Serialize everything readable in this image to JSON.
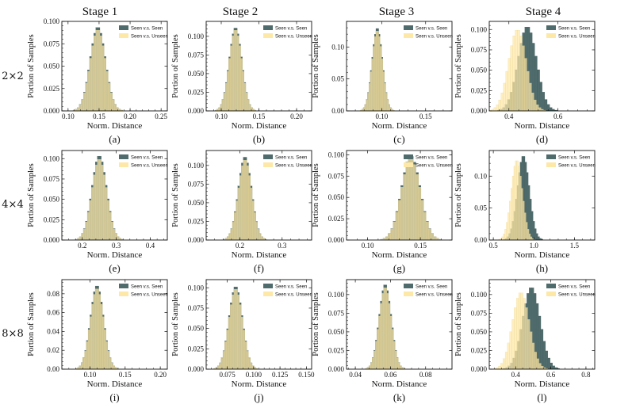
{
  "figure": {
    "stage_titles": [
      "Stage 1",
      "Stage 2",
      "Stage 3",
      "Stage 4"
    ],
    "row_labels": [
      "2×2",
      "4×4",
      "8×8"
    ]
  },
  "colors": {
    "seen_seen": "#4f6b6b",
    "seen_unseen": "#fde8a8",
    "overlap": "#a9a873"
  },
  "chart_data": [
    {
      "type": "histogram",
      "caption": "(a)",
      "xlabel": "Norm. Distance",
      "ylabel": "Portion of Samples",
      "xlim": [
        0.09,
        0.26
      ],
      "ylim": [
        0,
        0.1
      ],
      "xticks": [
        0.1,
        0.15,
        0.2,
        0.25
      ],
      "xtick_labels": [
        "0.10",
        "0.15",
        "0.20",
        "0.25"
      ],
      "yticks": [
        0,
        0.025,
        0.05,
        0.075,
        0.1
      ],
      "ytick_labels": [
        "0.000",
        "0.025",
        "0.050",
        "0.075",
        "0.100"
      ],
      "legend": [
        "Seen v.s. Seen",
        "Seen v.s. Unseen"
      ],
      "series": [
        {
          "name": "Seen v.s. Seen",
          "mean": 0.148,
          "sd": 0.0125,
          "peak": 0.094
        },
        {
          "name": "Seen v.s. Unseen",
          "mean": 0.148,
          "sd": 0.0125,
          "peak": 0.091
        }
      ]
    },
    {
      "type": "histogram",
      "caption": "(b)",
      "xlabel": "Norm. Distance",
      "ylabel": "Portion of Samples",
      "xlim": [
        0.08,
        0.22
      ],
      "ylim": [
        0,
        0.12
      ],
      "xticks": [
        0.1,
        0.15,
        0.2
      ],
      "xtick_labels": [
        "0.10",
        "0.15",
        "0.20"
      ],
      "yticks": [
        0,
        0.025,
        0.05,
        0.075,
        0.1
      ],
      "ytick_labels": [
        "0.000",
        "0.025",
        "0.050",
        "0.075",
        "0.100"
      ],
      "legend": [
        "Seen v.s. Seen",
        "Seen v.s. Unseen"
      ],
      "series": [
        {
          "name": "Seen v.s. Seen",
          "mean": 0.119,
          "sd": 0.0085,
          "peak": 0.112
        },
        {
          "name": "Seen v.s. Unseen",
          "mean": 0.119,
          "sd": 0.0085,
          "peak": 0.109
        }
      ]
    },
    {
      "type": "histogram",
      "caption": "(c)",
      "xlabel": "Norm. Distance",
      "ylabel": "Portion of Samples",
      "xlim": [
        0.06,
        0.18
      ],
      "ylim": [
        0,
        0.14
      ],
      "xticks": [
        0.1,
        0.15
      ],
      "xtick_labels": [
        "0.10",
        "0.15"
      ],
      "yticks": [
        0,
        0.05,
        0.1
      ],
      "ytick_labels": [
        "0.00",
        "0.05",
        "0.10"
      ],
      "legend": [
        "Seen v.s. Seen",
        "Seen v.s. Unseen"
      ],
      "series": [
        {
          "name": "Seen v.s. Seen",
          "mean": 0.095,
          "sd": 0.006,
          "peak": 0.13
        },
        {
          "name": "Seen v.s. Unseen",
          "mean": 0.095,
          "sd": 0.006,
          "peak": 0.126
        }
      ]
    },
    {
      "type": "histogram",
      "caption": "(d)",
      "xlabel": "Norm. Distance",
      "ylabel": "Portion of Samples",
      "xlim": [
        0.32,
        0.75
      ],
      "ylim": [
        0,
        0.11
      ],
      "xticks": [
        0.4,
        0.6
      ],
      "xtick_labels": [
        "0.4",
        "0.6"
      ],
      "yticks": [
        0,
        0.025,
        0.05,
        0.075,
        0.1
      ],
      "ytick_labels": [
        "0.000",
        "0.025",
        "0.050",
        "0.075",
        "0.100"
      ],
      "legend": [
        "Seen v.s. Seen",
        "Seen v.s. Unseen"
      ],
      "series": [
        {
          "name": "Seen v.s. Seen",
          "mean": 0.475,
          "sd": 0.038,
          "peak": 0.104
        },
        {
          "name": "Seen v.s. Unseen",
          "mean": 0.435,
          "sd": 0.036,
          "peak": 0.1
        }
      ]
    },
    {
      "type": "histogram",
      "caption": "(e)",
      "xlabel": "Norm. Distance",
      "ylabel": "Portion of Samples",
      "xlim": [
        0.14,
        0.45
      ],
      "ylim": [
        0,
        0.11
      ],
      "xticks": [
        0.2,
        0.3,
        0.4
      ],
      "xtick_labels": [
        "0.2",
        "0.3",
        "0.4"
      ],
      "yticks": [
        0,
        0.025,
        0.05,
        0.075,
        0.1
      ],
      "ytick_labels": [
        "0.000",
        "0.025",
        "0.050",
        "0.075",
        "0.100"
      ],
      "legend": [
        "Seen v.s. Seen",
        "Seen v.s. Unseen"
      ],
      "series": [
        {
          "name": "Seen v.s. Seen",
          "mean": 0.25,
          "sd": 0.022,
          "peak": 0.104
        },
        {
          "name": "Seen v.s. Unseen",
          "mean": 0.25,
          "sd": 0.022,
          "peak": 0.1
        }
      ]
    },
    {
      "type": "histogram",
      "caption": "(f)",
      "xlabel": "Norm. Distance",
      "ylabel": "Portion of Samples",
      "xlim": [
        0.12,
        0.37
      ],
      "ylim": [
        0,
        0.12
      ],
      "xticks": [
        0.2,
        0.3
      ],
      "xtick_labels": [
        "0.2",
        "0.3"
      ],
      "yticks": [
        0,
        0.025,
        0.05,
        0.075,
        0.1
      ],
      "ytick_labels": [
        "0.000",
        "0.025",
        "0.050",
        "0.075",
        "0.100"
      ],
      "legend": [
        "Seen v.s. Seen",
        "Seen v.s. Unseen"
      ],
      "series": [
        {
          "name": "Seen v.s. Seen",
          "mean": 0.212,
          "sd": 0.016,
          "peak": 0.112
        },
        {
          "name": "Seen v.s. Unseen",
          "mean": 0.212,
          "sd": 0.016,
          "peak": 0.108
        }
      ]
    },
    {
      "type": "histogram",
      "caption": "(g)",
      "xlabel": "Norm. Distance",
      "ylabel": "Portion of Samples",
      "xlim": [
        0.08,
        0.18
      ],
      "ylim": [
        0,
        0.105
      ],
      "xticks": [
        0.1,
        0.15
      ],
      "xtick_labels": [
        "0.10",
        "0.15"
      ],
      "yticks": [
        0,
        0.025,
        0.05,
        0.075,
        0.1
      ],
      "ytick_labels": [
        "0.000",
        "0.025",
        "0.050",
        "0.075",
        "0.100"
      ],
      "legend": [
        "Seen v.s. Seen",
        "Seen v.s. Unseen"
      ],
      "series": [
        {
          "name": "Seen v.s. Seen",
          "mean": 0.141,
          "sd": 0.009,
          "peak": 0.099
        },
        {
          "name": "Seen v.s. Unseen",
          "mean": 0.141,
          "sd": 0.009,
          "peak": 0.096
        }
      ]
    },
    {
      "type": "histogram",
      "caption": "(h)",
      "xlabel": "Norm. Distance",
      "ylabel": "Portion of Samples",
      "xlim": [
        0.45,
        1.75
      ],
      "ylim": [
        0,
        0.14
      ],
      "xticks": [
        0.5,
        1.0,
        1.5
      ],
      "xtick_labels": [
        "0.5",
        "1.0",
        "1.5"
      ],
      "yticks": [
        0,
        0.05,
        0.1
      ],
      "ytick_labels": [
        "0.00",
        "0.05",
        "0.10"
      ],
      "legend": [
        "Seen v.s. Seen",
        "Seen v.s. Unseen"
      ],
      "series": [
        {
          "name": "Seen v.s. Seen",
          "mean": 0.87,
          "sd": 0.075,
          "peak": 0.132
        },
        {
          "name": "Seen v.s. Unseen",
          "mean": 0.79,
          "sd": 0.07,
          "peak": 0.125
        }
      ]
    },
    {
      "type": "histogram",
      "caption": "(i)",
      "xlabel": "Norm. Distance",
      "ylabel": "Portion of Samples",
      "xlim": [
        0.06,
        0.21
      ],
      "ylim": [
        0,
        0.095
      ],
      "xticks": [
        0.1,
        0.15,
        0.2
      ],
      "xtick_labels": [
        "0.10",
        "0.15",
        "0.20"
      ],
      "yticks": [
        0,
        0.02,
        0.04,
        0.06,
        0.08
      ],
      "ytick_labels": [
        "0.00",
        "0.02",
        "0.04",
        "0.06",
        "0.08"
      ],
      "legend": [
        "Seen v.s. Seen",
        "Seen v.s. Unseen"
      ],
      "series": [
        {
          "name": "Seen v.s. Seen",
          "mean": 0.11,
          "sd": 0.0095,
          "peak": 0.089
        },
        {
          "name": "Seen v.s. Unseen",
          "mean": 0.11,
          "sd": 0.0095,
          "peak": 0.086
        }
      ]
    },
    {
      "type": "histogram",
      "caption": "(j)",
      "xlabel": "Norm. Distance",
      "ylabel": "Portion of Samples",
      "xlim": [
        0.055,
        0.155
      ],
      "ylim": [
        0,
        0.11
      ],
      "xticks": [
        0.075,
        0.1,
        0.125,
        0.15
      ],
      "xtick_labels": [
        "0.075",
        "0.100",
        "0.125",
        "0.150"
      ],
      "yticks": [
        0,
        0.025,
        0.05,
        0.075,
        0.1
      ],
      "ytick_labels": [
        "0.000",
        "0.025",
        "0.050",
        "0.075",
        "0.100"
      ],
      "legend": [
        "Seen v.s. Seen",
        "Seen v.s. Unseen"
      ],
      "series": [
        {
          "name": "Seen v.s. Seen",
          "mean": 0.083,
          "sd": 0.0065,
          "peak": 0.102
        },
        {
          "name": "Seen v.s. Unseen",
          "mean": 0.083,
          "sd": 0.0065,
          "peak": 0.099
        }
      ]
    },
    {
      "type": "histogram",
      "caption": "(k)",
      "xlabel": "Norm. Distance",
      "ylabel": "Portion of Samples",
      "xlim": [
        0.035,
        0.095
      ],
      "ylim": [
        0,
        0.12
      ],
      "xticks": [
        0.04,
        0.06,
        0.08
      ],
      "xtick_labels": [
        "0.04",
        "0.06",
        "0.08"
      ],
      "yticks": [
        0,
        0.025,
        0.05,
        0.075,
        0.1
      ],
      "ytick_labels": [
        "0.000",
        "0.025",
        "0.050",
        "0.075",
        "0.100"
      ],
      "legend": [
        "Seen v.s. Seen",
        "Seen v.s. Unseen"
      ],
      "series": [
        {
          "name": "Seen v.s. Seen",
          "mean": 0.057,
          "sd": 0.0035,
          "peak": 0.114
        },
        {
          "name": "Seen v.s. Unseen",
          "mean": 0.057,
          "sd": 0.0035,
          "peak": 0.11
        }
      ]
    },
    {
      "type": "histogram",
      "caption": "(l)",
      "xlabel": "Norm. Distance",
      "ylabel": "Portion of Samples",
      "xlim": [
        0.25,
        0.85
      ],
      "ylim": [
        0,
        0.12
      ],
      "xticks": [
        0.4,
        0.6,
        0.8
      ],
      "xtick_labels": [
        "0.4",
        "0.6",
        "0.8"
      ],
      "yticks": [
        0,
        0.025,
        0.05,
        0.075,
        0.1
      ],
      "ytick_labels": [
        "0.000",
        "0.025",
        "0.050",
        "0.075",
        "0.100"
      ],
      "legend": [
        "Seen v.s. Seen",
        "Seen v.s. Unseen"
      ],
      "series": [
        {
          "name": "Seen v.s. Seen",
          "mean": 0.49,
          "sd": 0.05,
          "peak": 0.11
        },
        {
          "name": "Seen v.s. Unseen",
          "mean": 0.43,
          "sd": 0.048,
          "peak": 0.103
        }
      ]
    }
  ]
}
